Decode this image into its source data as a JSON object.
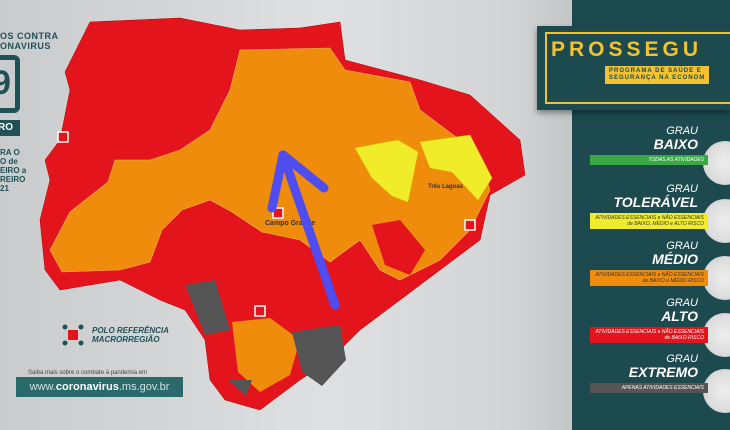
{
  "header": {
    "line1": "OS CONTRA",
    "line2": "ONAVIRUS"
  },
  "calendar": {
    "day": "9",
    "month": "RO",
    "period": [
      "RA O",
      "O de",
      "EIRO a",
      "REIRO",
      "21"
    ]
  },
  "map": {
    "cities": [
      "Campo Grande",
      "Três Lagoas"
    ],
    "colors": {
      "baixo": "#3aa845",
      "toleravel": "#f0ec2a",
      "medio": "#f08c0c",
      "alto": "#e3141b",
      "extremo": "#555555"
    },
    "arrow_color": "#4f4cf0"
  },
  "legend": {
    "label": "POLO REFERÊNCIA MACRORREGIÃO"
  },
  "footer": {
    "more": "Saiba mais sobre o combate à pandemia em",
    "url_prefix": "www.",
    "url_bold": "coronavirus",
    "url_suffix": ".ms.gov.br"
  },
  "banner": {
    "title": "PROSSEGU",
    "subtitle1": "PROGRAMA DE SAÚDE E",
    "subtitle2": "SEGURANÇA NA ECONOM"
  },
  "levels": [
    {
      "grau": "GRAU",
      "name": "BAIXO",
      "desc": "TODAS AS ATIVIDADES",
      "color": "#3aa845",
      "text_color": "#ffffff"
    },
    {
      "grau": "GRAU",
      "name": "TOLERÁVEL",
      "desc": "ATIVIDADES ESSENCIAIS e NÃO ESSENCIAIS de BAIXO, MÉDIO e ALTO RISCO",
      "color": "#f0ec2a",
      "text_color": "#333333"
    },
    {
      "grau": "GRAU",
      "name": "MÉDIO",
      "desc": "ATIVIDADES ESSENCIAIS e NÃO ESSENCIAIS de BAIXO e MÉDIO RISCO",
      "color": "#f08c0c",
      "text_color": "#333333"
    },
    {
      "grau": "GRAU",
      "name": "ALTO",
      "desc": "ATIVIDADES ESSENCIAIS e NÃO ESSENCIAIS de BAIXO RISCO",
      "color": "#e3141b",
      "text_color": "#ffffff"
    },
    {
      "grau": "GRAU",
      "name": "EXTREMO",
      "desc": "APENAS ATIVIDADES ESSENCIAIS",
      "color": "#555555",
      "text_color": "#ffffff"
    }
  ]
}
